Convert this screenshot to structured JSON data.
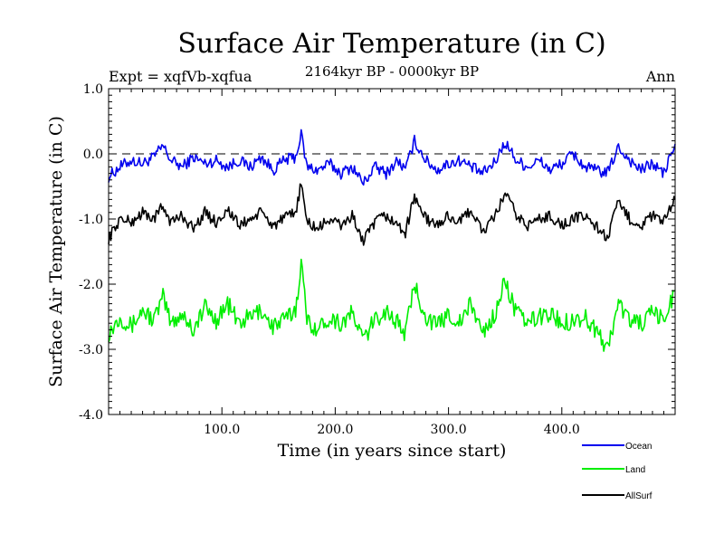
{
  "chart_data": {
    "type": "line",
    "title": "Surface Air Temperature (in C)",
    "subtitle": "2164kyr BP - 0000kyr BP",
    "expt_label": "Expt = xqfVb-xqfua",
    "season_label": "Ann",
    "xlabel": "Time (in years since start)",
    "ylabel": "Surface Air Temperature (in C)",
    "xlim": [
      0,
      500
    ],
    "ylim": [
      -4.0,
      1.0
    ],
    "x_ticks": [
      100,
      200,
      300,
      400
    ],
    "x_tick_labels": [
      "100.0",
      "200.0",
      "300.0",
      "400.0"
    ],
    "y_ticks": [
      1.0,
      0.0,
      -1.0,
      -2.0,
      -3.0,
      -4.0
    ],
    "y_tick_labels": [
      "1.0",
      "0.0",
      "-1.0",
      "-2.0",
      "-3.0",
      "-4.0"
    ],
    "reference_line": 0.0,
    "legend_position": "bottom-right",
    "series": [
      {
        "name": "Ocean",
        "color": "#0000ee",
        "x": [
          0,
          10,
          20,
          30,
          40,
          48,
          55,
          65,
          75,
          85,
          95,
          105,
          115,
          125,
          135,
          145,
          155,
          165,
          170,
          175,
          185,
          195,
          205,
          215,
          225,
          235,
          245,
          255,
          262,
          270,
          280,
          290,
          300,
          310,
          320,
          330,
          340,
          350,
          360,
          370,
          380,
          390,
          400,
          410,
          420,
          430,
          440,
          450,
          460,
          470,
          480,
          490,
          500
        ],
        "values": [
          -0.35,
          -0.2,
          -0.1,
          -0.15,
          -0.05,
          0.12,
          -0.1,
          -0.2,
          -0.05,
          -0.15,
          -0.1,
          -0.2,
          -0.1,
          -0.2,
          -0.05,
          -0.25,
          -0.1,
          -0.05,
          0.3,
          -0.2,
          -0.25,
          -0.15,
          -0.3,
          -0.2,
          -0.45,
          -0.2,
          -0.3,
          -0.1,
          -0.25,
          0.2,
          -0.1,
          -0.25,
          -0.15,
          -0.1,
          -0.2,
          -0.3,
          -0.15,
          0.18,
          -0.1,
          -0.2,
          -0.1,
          -0.25,
          -0.15,
          0.0,
          -0.2,
          -0.25,
          -0.3,
          0.1,
          -0.1,
          -0.25,
          -0.15,
          -0.3,
          0.15
        ]
      },
      {
        "name": "Land",
        "color": "#00ee00",
        "x": [
          0,
          10,
          20,
          30,
          40,
          48,
          55,
          65,
          75,
          85,
          95,
          105,
          115,
          125,
          135,
          145,
          155,
          165,
          170,
          175,
          185,
          195,
          205,
          215,
          225,
          235,
          245,
          255,
          262,
          270,
          280,
          290,
          300,
          310,
          320,
          330,
          340,
          350,
          360,
          370,
          380,
          390,
          400,
          410,
          420,
          430,
          440,
          450,
          460,
          470,
          480,
          490,
          500
        ],
        "values": [
          -2.75,
          -2.5,
          -2.65,
          -2.4,
          -2.55,
          -2.2,
          -2.6,
          -2.45,
          -2.7,
          -2.35,
          -2.55,
          -2.3,
          -2.6,
          -2.5,
          -2.4,
          -2.65,
          -2.55,
          -2.4,
          -1.65,
          -2.55,
          -2.7,
          -2.5,
          -2.6,
          -2.45,
          -2.85,
          -2.55,
          -2.4,
          -2.6,
          -2.75,
          -2.0,
          -2.5,
          -2.65,
          -2.45,
          -2.6,
          -2.3,
          -2.75,
          -2.5,
          -1.95,
          -2.45,
          -2.6,
          -2.5,
          -2.45,
          -2.6,
          -2.55,
          -2.5,
          -2.7,
          -3.0,
          -2.3,
          -2.55,
          -2.6,
          -2.45,
          -2.55,
          -2.1
        ]
      },
      {
        "name": "AllSurf",
        "color": "#000000",
        "x": [
          0,
          10,
          20,
          30,
          40,
          48,
          55,
          65,
          75,
          85,
          95,
          105,
          115,
          125,
          135,
          145,
          155,
          165,
          170,
          175,
          185,
          195,
          205,
          215,
          225,
          235,
          245,
          255,
          262,
          270,
          280,
          290,
          300,
          310,
          320,
          330,
          340,
          350,
          360,
          370,
          380,
          390,
          400,
          410,
          420,
          430,
          440,
          450,
          460,
          470,
          480,
          490,
          500
        ],
        "values": [
          -1.3,
          -1.0,
          -1.05,
          -0.9,
          -1.0,
          -0.8,
          -1.05,
          -0.95,
          -1.15,
          -0.9,
          -1.05,
          -0.85,
          -1.1,
          -1.0,
          -0.9,
          -1.1,
          -1.0,
          -0.9,
          -0.45,
          -1.05,
          -1.15,
          -1.0,
          -1.1,
          -0.95,
          -1.35,
          -1.05,
          -0.95,
          -1.1,
          -1.2,
          -0.65,
          -1.0,
          -1.1,
          -0.95,
          -1.05,
          -0.85,
          -1.2,
          -1.0,
          -0.6,
          -0.95,
          -1.1,
          -1.0,
          -0.95,
          -1.1,
          -1.0,
          -0.95,
          -1.1,
          -1.3,
          -0.75,
          -1.0,
          -1.1,
          -0.95,
          -1.05,
          -0.7
        ]
      }
    ]
  }
}
